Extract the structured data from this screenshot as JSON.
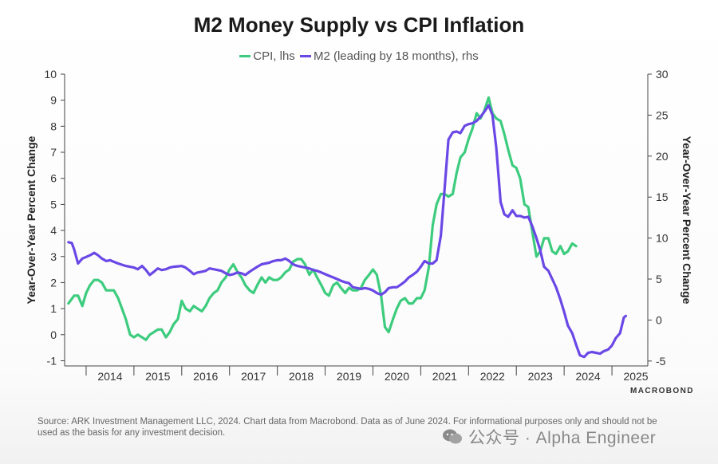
{
  "title": "M2 Money Supply vs CPI Inflation",
  "legend": [
    {
      "label": "CPI, lhs",
      "color": "#3dcc7e"
    },
    {
      "label": "M2 (leading by 18 months), rhs",
      "color": "#6a48e6"
    }
  ],
  "source_text": "Source: ARK Investment Management LLC, 2024. Chart data from Macrobond. Data as of June 2024. For informational purposes only and should not be used as the basis for any investment decision.",
  "brand": "MACROBOND",
  "watermark": "公众号 · Alpha Engineer",
  "chart_data": {
    "type": "line",
    "title": "M2 Money Supply vs CPI Inflation",
    "x_axis": {
      "tick_labels": [
        "2014",
        "2015",
        "2016",
        "2017",
        "2018",
        "2019",
        "2020",
        "2021",
        "2022",
        "2023",
        "2024",
        "2025"
      ],
      "range": [
        2013.55,
        2025.75
      ]
    },
    "y_left": {
      "label": "Year-Over-Year Percent Change",
      "range": [
        -1.2,
        10
      ],
      "ticks": [
        -1,
        0,
        1,
        2,
        3,
        4,
        5,
        6,
        7,
        8,
        9,
        10
      ]
    },
    "y_right": {
      "label": "Year-Over-Year Percent Change",
      "range": [
        -5.6,
        30
      ],
      "ticks": [
        -5,
        0,
        5,
        10,
        15,
        20,
        25,
        30
      ]
    },
    "grid": false,
    "legend_position": "top-center",
    "series": [
      {
        "name": "CPI, lhs",
        "axis": "left",
        "color": "#3dcc7e",
        "points": [
          [
            2013.63,
            1.2
          ],
          [
            2013.75,
            1.5
          ],
          [
            2013.83,
            1.5
          ],
          [
            2013.92,
            1.1
          ],
          [
            2014.0,
            1.6
          ],
          [
            2014.08,
            1.9
          ],
          [
            2014.17,
            2.1
          ],
          [
            2014.25,
            2.1
          ],
          [
            2014.33,
            2.0
          ],
          [
            2014.42,
            1.7
          ],
          [
            2014.5,
            1.7
          ],
          [
            2014.58,
            1.7
          ],
          [
            2014.67,
            1.4
          ],
          [
            2014.75,
            1.0
          ],
          [
            2014.83,
            0.6
          ],
          [
            2014.92,
            0.0
          ],
          [
            2015.0,
            -0.1
          ],
          [
            2015.08,
            0.0
          ],
          [
            2015.17,
            -0.1
          ],
          [
            2015.25,
            -0.2
          ],
          [
            2015.33,
            0.0
          ],
          [
            2015.42,
            0.1
          ],
          [
            2015.5,
            0.2
          ],
          [
            2015.58,
            0.2
          ],
          [
            2015.67,
            -0.1
          ],
          [
            2015.75,
            0.1
          ],
          [
            2015.83,
            0.4
          ],
          [
            2015.92,
            0.6
          ],
          [
            2016.0,
            1.3
          ],
          [
            2016.08,
            1.0
          ],
          [
            2016.17,
            0.9
          ],
          [
            2016.25,
            1.1
          ],
          [
            2016.33,
            1.0
          ],
          [
            2016.42,
            0.9
          ],
          [
            2016.5,
            1.1
          ],
          [
            2016.58,
            1.4
          ],
          [
            2016.67,
            1.6
          ],
          [
            2016.75,
            1.7
          ],
          [
            2016.83,
            2.0
          ],
          [
            2016.92,
            2.2
          ],
          [
            2017.0,
            2.5
          ],
          [
            2017.08,
            2.7
          ],
          [
            2017.17,
            2.4
          ],
          [
            2017.25,
            2.2
          ],
          [
            2017.33,
            1.9
          ],
          [
            2017.42,
            1.7
          ],
          [
            2017.5,
            1.6
          ],
          [
            2017.58,
            1.9
          ],
          [
            2017.67,
            2.2
          ],
          [
            2017.75,
            2.0
          ],
          [
            2017.83,
            2.2
          ],
          [
            2017.92,
            2.1
          ],
          [
            2018.0,
            2.1
          ],
          [
            2018.08,
            2.2
          ],
          [
            2018.17,
            2.4
          ],
          [
            2018.25,
            2.5
          ],
          [
            2018.33,
            2.8
          ],
          [
            2018.42,
            2.9
          ],
          [
            2018.5,
            2.9
          ],
          [
            2018.58,
            2.7
          ],
          [
            2018.67,
            2.3
          ],
          [
            2018.75,
            2.5
          ],
          [
            2018.83,
            2.2
          ],
          [
            2018.92,
            1.9
          ],
          [
            2019.0,
            1.6
          ],
          [
            2019.08,
            1.5
          ],
          [
            2019.17,
            1.9
          ],
          [
            2019.25,
            2.0
          ],
          [
            2019.33,
            1.8
          ],
          [
            2019.42,
            1.6
          ],
          [
            2019.5,
            1.8
          ],
          [
            2019.58,
            1.7
          ],
          [
            2019.67,
            1.7
          ],
          [
            2019.75,
            1.8
          ],
          [
            2019.83,
            2.1
          ],
          [
            2019.92,
            2.3
          ],
          [
            2020.0,
            2.5
          ],
          [
            2020.08,
            2.3
          ],
          [
            2020.17,
            1.5
          ],
          [
            2020.25,
            0.3
          ],
          [
            2020.33,
            0.1
          ],
          [
            2020.42,
            0.6
          ],
          [
            2020.5,
            1.0
          ],
          [
            2020.58,
            1.3
          ],
          [
            2020.67,
            1.4
          ],
          [
            2020.75,
            1.2
          ],
          [
            2020.83,
            1.2
          ],
          [
            2020.92,
            1.4
          ],
          [
            2021.0,
            1.4
          ],
          [
            2021.08,
            1.7
          ],
          [
            2021.17,
            2.6
          ],
          [
            2021.25,
            4.2
          ],
          [
            2021.33,
            5.0
          ],
          [
            2021.42,
            5.4
          ],
          [
            2021.5,
            5.4
          ],
          [
            2021.58,
            5.3
          ],
          [
            2021.67,
            5.4
          ],
          [
            2021.75,
            6.2
          ],
          [
            2021.83,
            6.8
          ],
          [
            2021.92,
            7.0
          ],
          [
            2022.0,
            7.5
          ],
          [
            2022.08,
            7.9
          ],
          [
            2022.17,
            8.5
          ],
          [
            2022.25,
            8.3
          ],
          [
            2022.33,
            8.6
          ],
          [
            2022.42,
            9.1
          ],
          [
            2022.5,
            8.5
          ],
          [
            2022.58,
            8.3
          ],
          [
            2022.67,
            8.2
          ],
          [
            2022.75,
            7.7
          ],
          [
            2022.83,
            7.1
          ],
          [
            2022.92,
            6.5
          ],
          [
            2023.0,
            6.4
          ],
          [
            2023.08,
            6.0
          ],
          [
            2023.17,
            5.0
          ],
          [
            2023.25,
            4.9
          ],
          [
            2023.33,
            4.0
          ],
          [
            2023.42,
            3.0
          ],
          [
            2023.5,
            3.2
          ],
          [
            2023.58,
            3.7
          ],
          [
            2023.67,
            3.7
          ],
          [
            2023.75,
            3.2
          ],
          [
            2023.83,
            3.1
          ],
          [
            2023.92,
            3.4
          ],
          [
            2024.0,
            3.1
          ],
          [
            2024.08,
            3.2
          ],
          [
            2024.17,
            3.5
          ],
          [
            2024.25,
            3.4
          ]
        ]
      },
      {
        "name": "M2 (leading by 18 months), rhs",
        "axis": "right",
        "color": "#6a48e6",
        "points": [
          [
            2013.63,
            9.5
          ],
          [
            2013.7,
            9.4
          ],
          [
            2013.75,
            8.6
          ],
          [
            2013.83,
            6.9
          ],
          [
            2013.92,
            7.5
          ],
          [
            2014.0,
            7.7
          ],
          [
            2014.08,
            7.9
          ],
          [
            2014.17,
            8.2
          ],
          [
            2014.25,
            7.9
          ],
          [
            2014.33,
            7.5
          ],
          [
            2014.42,
            7.2
          ],
          [
            2014.5,
            7.3
          ],
          [
            2014.58,
            7.1
          ],
          [
            2014.67,
            6.9
          ],
          [
            2014.83,
            6.6
          ],
          [
            2015.0,
            6.4
          ],
          [
            2015.08,
            6.2
          ],
          [
            2015.17,
            6.6
          ],
          [
            2015.25,
            6.1
          ],
          [
            2015.33,
            5.5
          ],
          [
            2015.42,
            5.9
          ],
          [
            2015.5,
            6.3
          ],
          [
            2015.58,
            6.1
          ],
          [
            2015.67,
            6.2
          ],
          [
            2015.75,
            6.4
          ],
          [
            2015.83,
            6.5
          ],
          [
            2016.0,
            6.6
          ],
          [
            2016.08,
            6.4
          ],
          [
            2016.17,
            6.0
          ],
          [
            2016.25,
            5.6
          ],
          [
            2016.33,
            5.8
          ],
          [
            2016.42,
            5.9
          ],
          [
            2016.5,
            6.0
          ],
          [
            2016.58,
            6.3
          ],
          [
            2016.67,
            6.2
          ],
          [
            2016.75,
            6.1
          ],
          [
            2016.83,
            6.0
          ],
          [
            2016.92,
            5.7
          ],
          [
            2017.0,
            5.5
          ],
          [
            2017.08,
            5.6
          ],
          [
            2017.17,
            5.8
          ],
          [
            2017.25,
            5.7
          ],
          [
            2017.33,
            5.5
          ],
          [
            2017.42,
            5.9
          ],
          [
            2017.5,
            6.2
          ],
          [
            2017.58,
            6.5
          ],
          [
            2017.67,
            6.8
          ],
          [
            2017.75,
            6.9
          ],
          [
            2017.83,
            7.0
          ],
          [
            2017.92,
            7.2
          ],
          [
            2018.0,
            7.3
          ],
          [
            2018.08,
            7.3
          ],
          [
            2018.17,
            7.5
          ],
          [
            2018.25,
            7.2
          ],
          [
            2018.33,
            6.8
          ],
          [
            2018.42,
            6.6
          ],
          [
            2018.5,
            6.5
          ],
          [
            2018.58,
            6.4
          ],
          [
            2018.67,
            6.3
          ],
          [
            2018.75,
            6.1
          ],
          [
            2018.83,
            6.0
          ],
          [
            2018.92,
            5.8
          ],
          [
            2019.0,
            5.6
          ],
          [
            2019.08,
            5.4
          ],
          [
            2019.17,
            5.2
          ],
          [
            2019.25,
            5.0
          ],
          [
            2019.33,
            4.8
          ],
          [
            2019.42,
            4.6
          ],
          [
            2019.5,
            4.5
          ],
          [
            2019.58,
            4.0
          ],
          [
            2019.67,
            3.9
          ],
          [
            2019.75,
            3.8
          ],
          [
            2019.83,
            3.9
          ],
          [
            2019.92,
            3.8
          ],
          [
            2020.0,
            3.6
          ],
          [
            2020.08,
            3.3
          ],
          [
            2020.17,
            3.1
          ],
          [
            2020.25,
            3.4
          ],
          [
            2020.33,
            3.9
          ],
          [
            2020.42,
            4.0
          ],
          [
            2020.5,
            4.0
          ],
          [
            2020.58,
            4.3
          ],
          [
            2020.67,
            4.7
          ],
          [
            2020.75,
            5.2
          ],
          [
            2020.83,
            5.5
          ],
          [
            2020.92,
            5.9
          ],
          [
            2021.0,
            6.5
          ],
          [
            2021.08,
            7.2
          ],
          [
            2021.17,
            6.9
          ],
          [
            2021.25,
            6.9
          ],
          [
            2021.33,
            7.3
          ],
          [
            2021.42,
            10.3
          ],
          [
            2021.5,
            16.0
          ],
          [
            2021.58,
            22.0
          ],
          [
            2021.67,
            22.9
          ],
          [
            2021.75,
            23.0
          ],
          [
            2021.83,
            22.8
          ],
          [
            2021.92,
            23.7
          ],
          [
            2022.0,
            23.9
          ],
          [
            2022.08,
            24.0
          ],
          [
            2022.17,
            24.3
          ],
          [
            2022.25,
            24.8
          ],
          [
            2022.33,
            25.4
          ],
          [
            2022.42,
            26.2
          ],
          [
            2022.5,
            25.0
          ],
          [
            2022.58,
            21.0
          ],
          [
            2022.67,
            14.4
          ],
          [
            2022.75,
            12.9
          ],
          [
            2022.83,
            12.6
          ],
          [
            2022.92,
            13.4
          ],
          [
            2023.0,
            12.7
          ],
          [
            2023.08,
            12.7
          ],
          [
            2023.17,
            12.5
          ],
          [
            2023.25,
            12.6
          ],
          [
            2023.33,
            11.5
          ],
          [
            2023.42,
            10.0
          ],
          [
            2023.5,
            8.5
          ],
          [
            2023.58,
            6.5
          ],
          [
            2023.67,
            6.0
          ],
          [
            2023.75,
            5.0
          ],
          [
            2023.83,
            4.0
          ],
          [
            2023.92,
            2.5
          ],
          [
            2024.0,
            1.0
          ],
          [
            2024.08,
            -0.7
          ],
          [
            2024.17,
            -1.6
          ],
          [
            2024.25,
            -3.0
          ],
          [
            2024.33,
            -4.3
          ],
          [
            2024.42,
            -4.5
          ],
          [
            2024.5,
            -4.0
          ],
          [
            2024.58,
            -3.9
          ],
          [
            2024.67,
            -4.0
          ],
          [
            2024.75,
            -4.1
          ],
          [
            2024.83,
            -3.8
          ],
          [
            2024.92,
            -3.6
          ],
          [
            2025.0,
            -3.1
          ],
          [
            2025.08,
            -2.2
          ],
          [
            2025.17,
            -1.6
          ],
          [
            2025.25,
            0.3
          ],
          [
            2025.29,
            0.5
          ]
        ]
      }
    ]
  }
}
